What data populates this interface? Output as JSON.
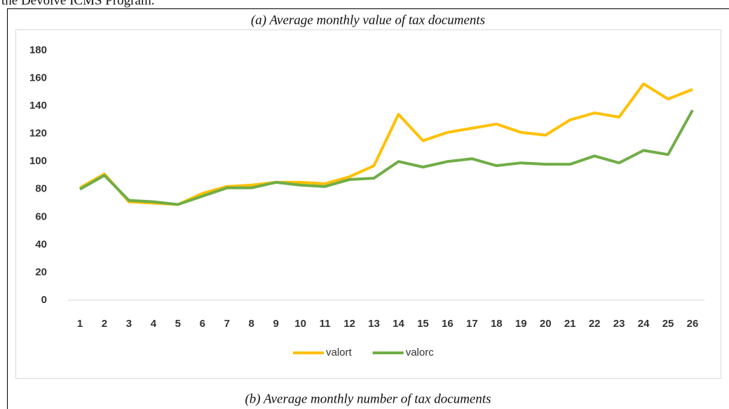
{
  "header": {
    "text": "the Devolve ICMS Program."
  },
  "chart_data": {
    "type": "line",
    "title": "(a) Average monthly value of tax documents",
    "categories": [
      "1",
      "2",
      "3",
      "4",
      "5",
      "6",
      "7",
      "8",
      "9",
      "10",
      "11",
      "12",
      "13",
      "14",
      "15",
      "16",
      "17",
      "18",
      "19",
      "20",
      "21",
      "22",
      "23",
      "24",
      "25",
      "26"
    ],
    "series": [
      {
        "name": "valort",
        "color": "#ffc000",
        "values": [
          81,
          91,
          71,
          70,
          69,
          77,
          82,
          83,
          85,
          85,
          84,
          89,
          97,
          134,
          115,
          121,
          124,
          127,
          121,
          119,
          130,
          135,
          132,
          156,
          145,
          152
        ]
      },
      {
        "name": "valorc",
        "color": "#70ad47",
        "values": [
          80,
          90,
          72,
          71,
          69,
          75,
          81,
          81,
          85,
          83,
          82,
          87,
          88,
          100,
          96,
          100,
          102,
          97,
          99,
          98,
          98,
          104,
          99,
          108,
          105,
          137
        ]
      }
    ],
    "ylim": [
      0,
      180
    ],
    "yticks": [
      0,
      20,
      40,
      60,
      80,
      100,
      120,
      140,
      160,
      180
    ],
    "grid": false,
    "legend": "bottom"
  },
  "caption": "(b) Average monthly number of tax documents"
}
